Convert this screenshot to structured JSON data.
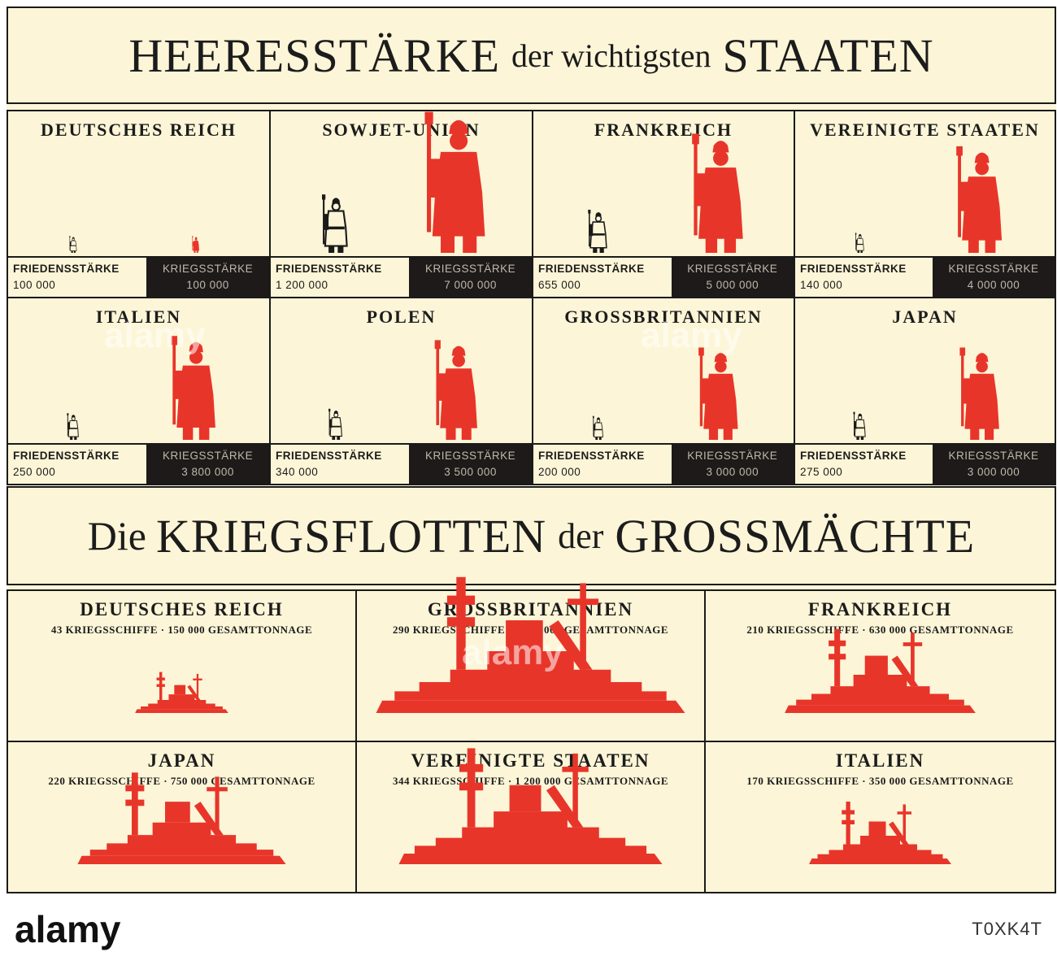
{
  "header": {
    "title_big_1": "HEERESSTÄRKE",
    "title_small_1": "der wichtigsten",
    "title_big_2": "STAATEN"
  },
  "fleet_header": {
    "title_small_1": "Die",
    "title_big_1": "KRIEGSFLOTTEN",
    "title_small_2": "der",
    "title_big_2": "GROSSMÄCHTE"
  },
  "colors": {
    "peace": "#1a1a1a",
    "war": "#e8352a",
    "dark": "#1e1a1a",
    "paper": "#fcf5d7"
  },
  "chart_data": [
    {
      "type": "bar",
      "title": "HEERESSTÄRKE der wichtigsten STAATEN",
      "categories": [
        "DEUTSCHES REICH",
        "SOWJET-UNION",
        "FRANKREICH",
        "VEREINIGTE STAATEN",
        "ITALIEN",
        "POLEN",
        "GROSSBRITANNIEN",
        "JAPAN"
      ],
      "series": [
        {
          "name": "FRIEDENSSTÄRKE",
          "values": [
            100000,
            1200000,
            655000,
            140000,
            250000,
            340000,
            200000,
            275000
          ]
        },
        {
          "name": "KRIEGSSTÄRKE",
          "values": [
            100000,
            7000000,
            5000000,
            4000000,
            3800000,
            3500000,
            3000000,
            3000000
          ]
        }
      ],
      "labels": {
        "peace": [
          "100 000",
          "1 200 000",
          "655 000",
          "140 000",
          "250 000",
          "340 000",
          "200 000",
          "275 000"
        ],
        "war": [
          "100 000",
          "7 000 000",
          "5 000 000",
          "4 000 000",
          "3 800 000",
          "3 500 000",
          "3 000 000",
          "3 000 000"
        ]
      }
    },
    {
      "type": "bar",
      "title": "Die KRIEGSFLOTTEN der GROSSMÄCHTE",
      "categories": [
        "DEUTSCHES REICH",
        "GROSSBRITANNIEN",
        "FRANKREICH",
        "JAPAN",
        "VEREINIGTE STAATEN",
        "ITALIEN"
      ],
      "series": [
        {
          "name": "KRIEGSSCHIFFE",
          "values": [
            43,
            290,
            210,
            220,
            344,
            170
          ]
        },
        {
          "name": "GESAMTTONNAGE",
          "values": [
            150000,
            1650000,
            630000,
            750000,
            1200000,
            350000
          ]
        }
      ],
      "captions": [
        "43 KRIEGSSCHIFFE · 150 000 GESAMTTONNAGE",
        "290 KRIEGSSCHIFFE · 1 650 000 GESAMTTONNAGE",
        "210 KRIEGSSCHIFFE · 630 000 GESAMTTONNAGE",
        "220 KRIEGSSCHIFFE · 750 000 GESAMTTONNAGE",
        "344 KRIEGSSCHIFFE · 1 200 000 GESAMTTONNAGE",
        "170 KRIEGSSCHIFFE · 350 000 GESAMTTONNAGE"
      ]
    }
  ],
  "stat_labels": {
    "peace": "FRIEDENSSTÄRKE",
    "war": "KRIEGSSTÄRKE"
  },
  "watermark": "alamy",
  "footer": {
    "logo": "alamy",
    "image_id": "T0XK4T"
  }
}
